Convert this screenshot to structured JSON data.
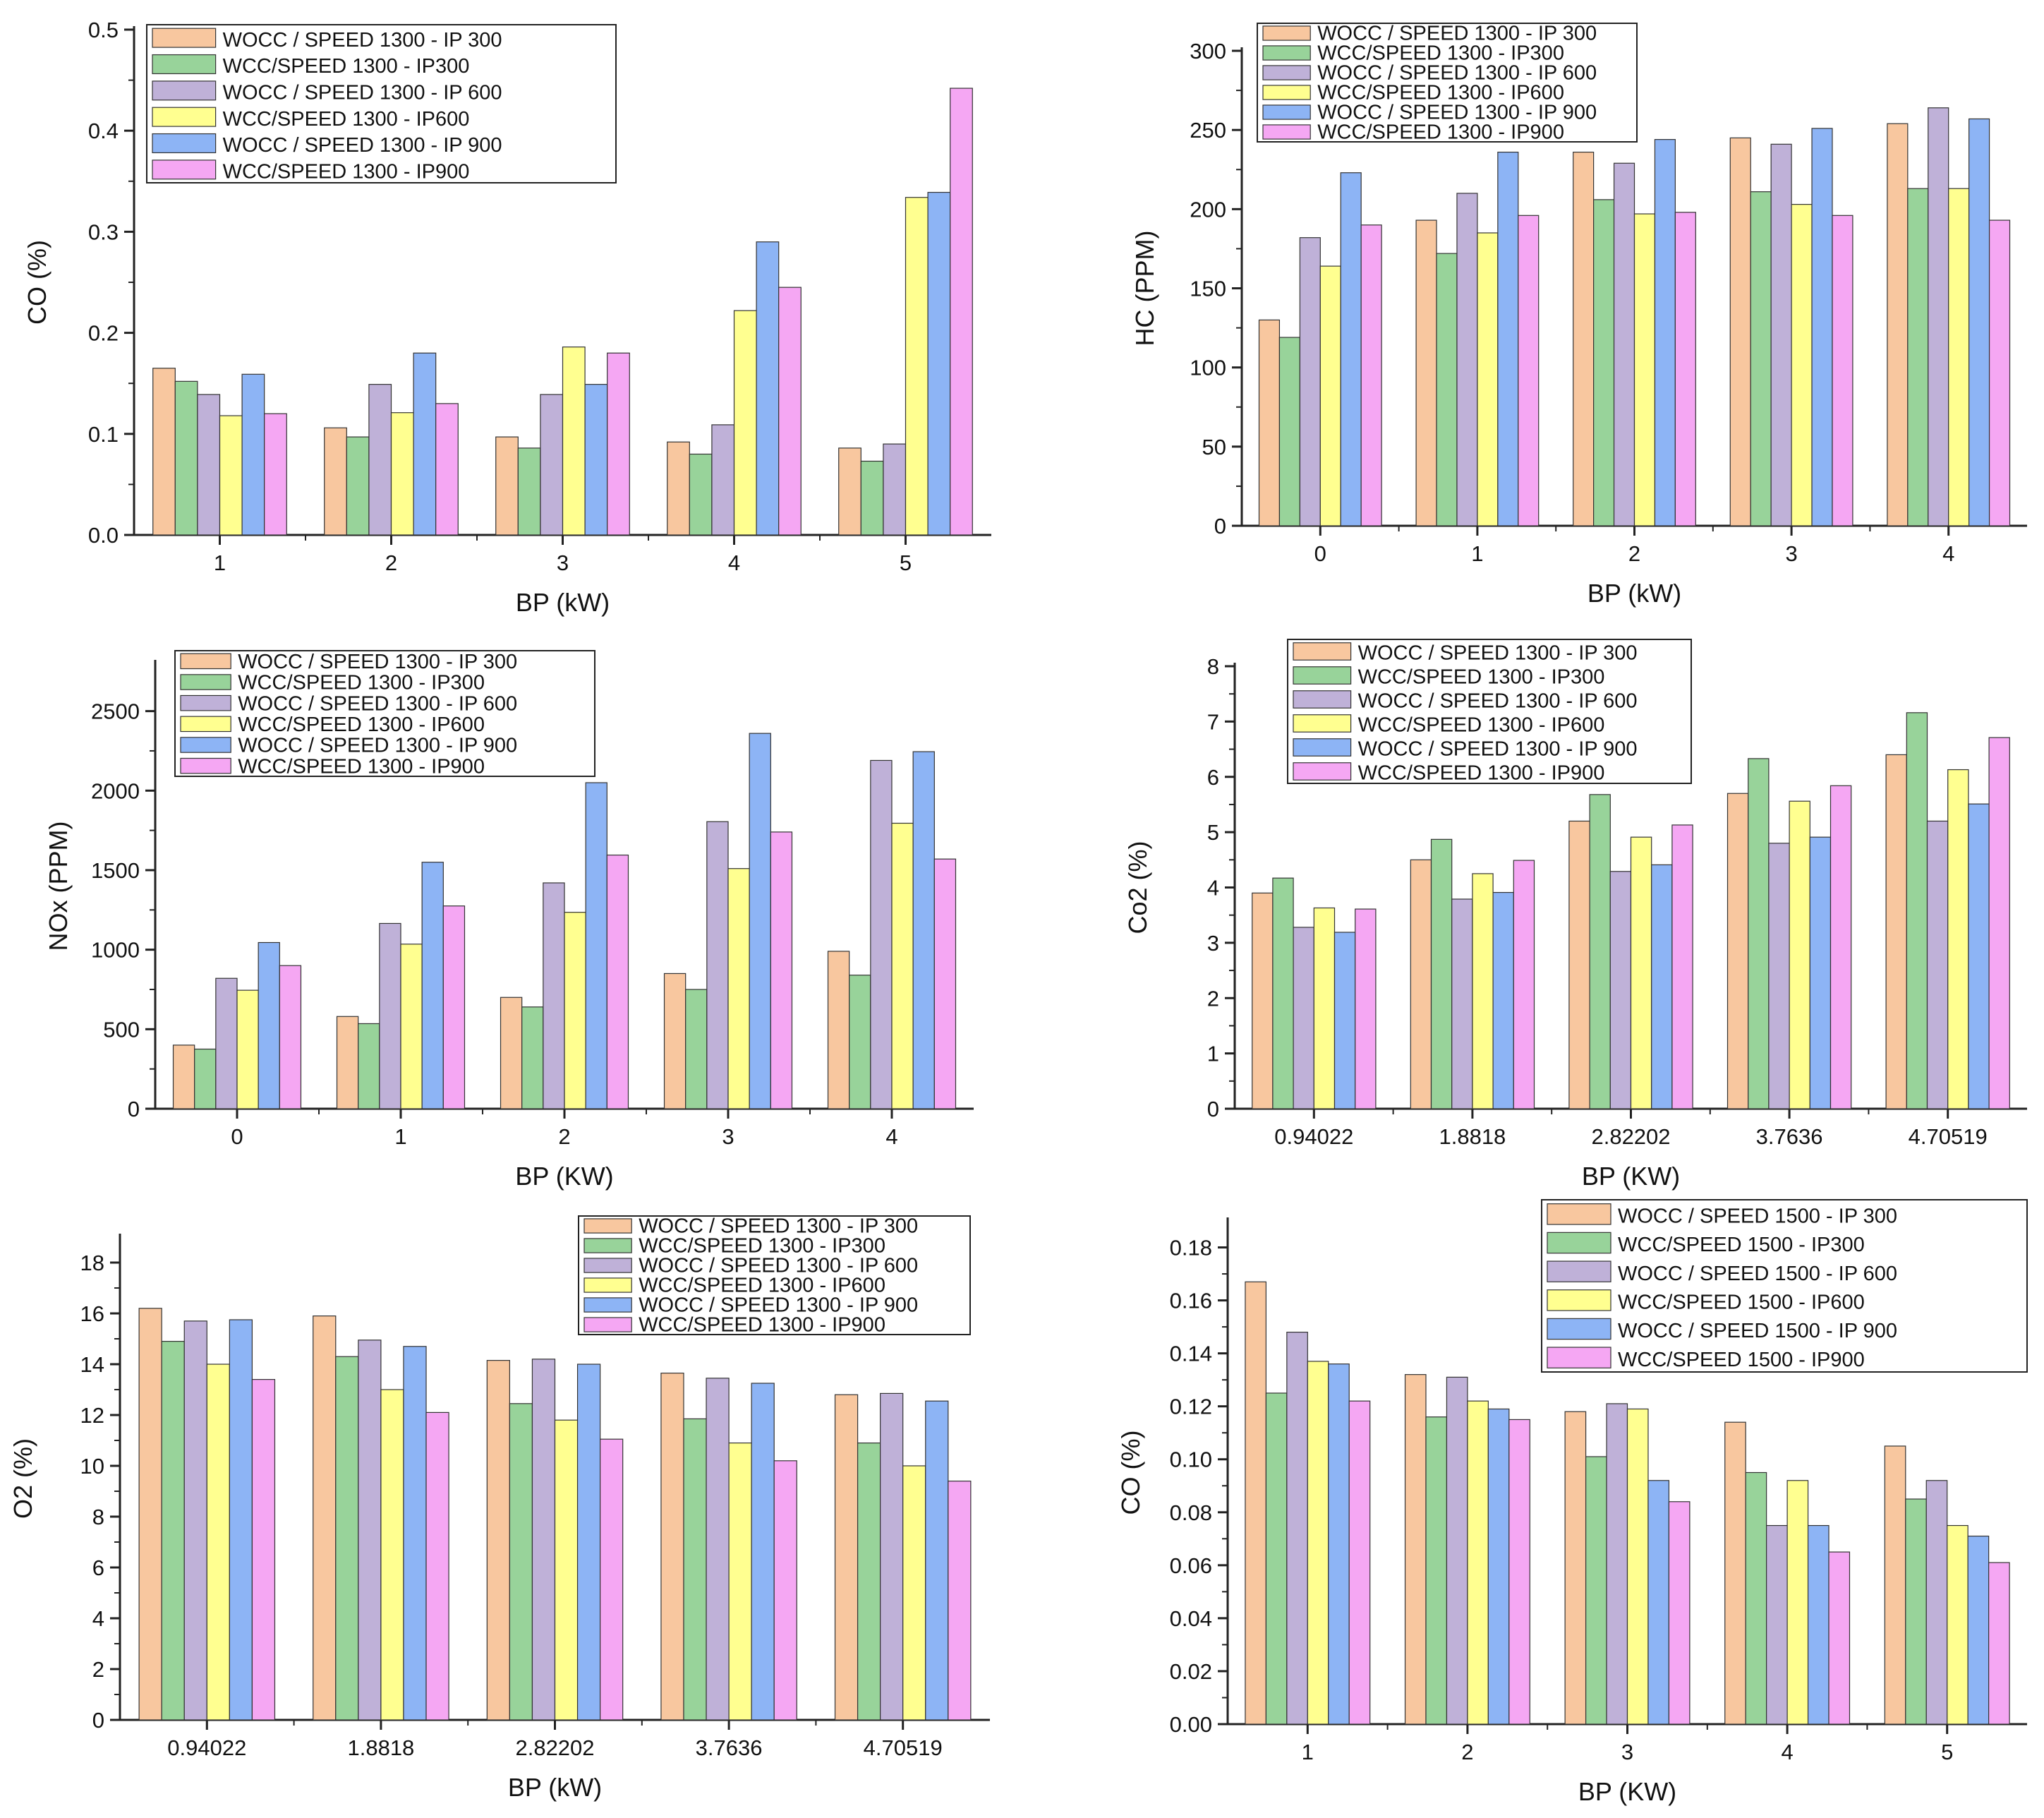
{
  "colors": {
    "orange": "#f8c79f",
    "green": "#98d39a",
    "purple": "#bfb1d8",
    "yellow": "#ffff90",
    "blue": "#8db4f5",
    "pink": "#f5a7f3",
    "stroke": "#333333",
    "axis": "#222222"
  },
  "chart_data": [
    {
      "type": "bar",
      "xlabel": "BP (kW)",
      "ylabel": "CO (%)",
      "ylim": [
        0,
        0.5
      ],
      "yticks": [
        "0.0",
        "0.1",
        "0.2",
        "0.3",
        "0.4",
        "0.5"
      ],
      "categories": [
        "1",
        "2",
        "3",
        "4",
        "5"
      ],
      "legend_position": "top-left",
      "series": [
        {
          "name": "WOCC / SPEED 1300 - IP 300",
          "values": [
            0.165,
            0.106,
            0.097,
            0.092,
            0.086
          ]
        },
        {
          "name": "WCC/SPEED 1300 - IP300",
          "values": [
            0.152,
            0.097,
            0.086,
            0.08,
            0.073
          ]
        },
        {
          "name": "WOCC / SPEED 1300 - IP 600",
          "values": [
            0.139,
            0.149,
            0.139,
            0.109,
            0.09
          ]
        },
        {
          "name": "WCC/SPEED 1300 - IP600",
          "values": [
            0.118,
            0.121,
            0.186,
            0.222,
            0.334
          ]
        },
        {
          "name": "WOCC / SPEED 1300 - IP 900",
          "values": [
            0.159,
            0.18,
            0.149,
            0.29,
            0.339
          ]
        },
        {
          "name": "WCC/SPEED 1300 - IP900",
          "values": [
            0.12,
            0.13,
            0.18,
            0.245,
            0.442
          ]
        }
      ]
    },
    {
      "type": "bar",
      "xlabel": "BP (kW)",
      "ylabel": "HC (PPM)",
      "ylim": [
        0,
        300
      ],
      "yticks": [
        "0",
        "50",
        "100",
        "150",
        "200",
        "250",
        "300"
      ],
      "categories": [
        "0",
        "1",
        "2",
        "3",
        "4"
      ],
      "legend_position": "top-left",
      "series": [
        {
          "name": "WOCC / SPEED 1300 - IP 300",
          "values": [
            130,
            193,
            236,
            245,
            254
          ]
        },
        {
          "name": "WCC/SPEED 1300 - IP300",
          "values": [
            119,
            172,
            206,
            211,
            213
          ]
        },
        {
          "name": "WOCC / SPEED 1300 - IP 600",
          "values": [
            182,
            210,
            229,
            241,
            264
          ]
        },
        {
          "name": "WCC/SPEED 1300 - IP600",
          "values": [
            164,
            185,
            197,
            203,
            213
          ]
        },
        {
          "name": "WOCC / SPEED 1300 - IP 900",
          "values": [
            223,
            236,
            244,
            251,
            257
          ]
        },
        {
          "name": "WCC/SPEED 1300 - IP900",
          "values": [
            190,
            196,
            198,
            196,
            193
          ]
        }
      ]
    },
    {
      "type": "bar",
      "xlabel": "BP (KW)",
      "ylabel": "NOx (PPM)",
      "ylim": [
        0,
        2800
      ],
      "yticks": [
        "0",
        "500",
        "1000",
        "1500",
        "2000",
        "2500"
      ],
      "categories": [
        "0",
        "1",
        "2",
        "3",
        "4"
      ],
      "legend_position": "top-left",
      "series": [
        {
          "name": "WOCC / SPEED 1300 - IP 300",
          "values": [
            400,
            580,
            700,
            850,
            990
          ]
        },
        {
          "name": "WCC/SPEED 1300 - IP300",
          "values": [
            375,
            535,
            640,
            750,
            840
          ]
        },
        {
          "name": "WOCC / SPEED 1300 - IP 600",
          "values": [
            820,
            1165,
            1420,
            1805,
            2190
          ]
        },
        {
          "name": "WCC/SPEED 1300 - IP600",
          "values": [
            745,
            1035,
            1235,
            1510,
            1795
          ]
        },
        {
          "name": "WOCC / SPEED 1300 - IP 900",
          "values": [
            1045,
            1550,
            2050,
            2360,
            2245
          ]
        },
        {
          "name": "WCC/SPEED 1300 - IP900",
          "values": [
            900,
            1275,
            1595,
            1740,
            1570
          ]
        }
      ]
    },
    {
      "type": "bar",
      "xlabel": "BP (KW)",
      "ylabel": "Co2 (%)",
      "ylim": [
        0,
        8
      ],
      "yticks": [
        "0",
        "1",
        "2",
        "3",
        "4",
        "5",
        "6",
        "7",
        "8"
      ],
      "categories": [
        "0.94022",
        "1.8818",
        "2.82202",
        "3.7636",
        "4.70519"
      ],
      "legend_position": "top-left",
      "series": [
        {
          "name": "WOCC / SPEED 1300 - IP 300",
          "values": [
            3.9,
            4.5,
            5.2,
            5.7,
            6.4
          ]
        },
        {
          "name": "WCC/SPEED 1300 - IP300",
          "values": [
            4.17,
            4.87,
            5.68,
            6.33,
            7.16
          ]
        },
        {
          "name": "WOCC / SPEED 1300 - IP 600",
          "values": [
            3.28,
            3.79,
            4.29,
            4.8,
            5.2
          ]
        },
        {
          "name": "WCC/SPEED 1300 - IP600",
          "values": [
            3.63,
            4.25,
            4.91,
            5.56,
            6.13
          ]
        },
        {
          "name": "WOCC / SPEED 1300 - IP 900",
          "values": [
            3.19,
            3.91,
            4.41,
            4.91,
            5.51
          ]
        },
        {
          "name": "WCC/SPEED 1300 - IP900",
          "values": [
            3.61,
            4.49,
            5.13,
            5.84,
            6.71
          ]
        }
      ]
    },
    {
      "type": "bar",
      "xlabel": "BP (kW)",
      "ylabel": "O2 (%)",
      "ylim": [
        0,
        19
      ],
      "yticks": [
        "0",
        "2",
        "4",
        "6",
        "8",
        "10",
        "12",
        "14",
        "16",
        "18"
      ],
      "categories": [
        "0.94022",
        "1.8818",
        "2.82202",
        "3.7636",
        "4.70519"
      ],
      "legend_position": "top-right",
      "series": [
        {
          "name": "WOCC / SPEED 1300 - IP 300",
          "values": [
            16.2,
            15.9,
            14.15,
            13.65,
            12.8
          ]
        },
        {
          "name": "WCC/SPEED 1300 - IP300",
          "values": [
            14.9,
            14.3,
            12.45,
            11.85,
            10.9
          ]
        },
        {
          "name": "WOCC / SPEED 1300 - IP 600",
          "values": [
            15.7,
            14.95,
            14.2,
            13.45,
            12.85
          ]
        },
        {
          "name": "WCC/SPEED 1300 - IP600",
          "values": [
            14.0,
            13.0,
            11.8,
            10.9,
            10.0
          ]
        },
        {
          "name": "WOCC / SPEED 1300 - IP 900",
          "values": [
            15.75,
            14.7,
            14.0,
            13.25,
            12.55
          ]
        },
        {
          "name": "WCC/SPEED 1300 - IP900",
          "values": [
            13.4,
            12.1,
            11.05,
            10.2,
            9.4
          ]
        }
      ]
    },
    {
      "type": "bar",
      "xlabel": "BP (KW)",
      "ylabel": "CO (%)",
      "ylim": [
        0,
        0.19
      ],
      "yticks": [
        "0.00",
        "0.02",
        "0.04",
        "0.06",
        "0.08",
        "0.10",
        "0.12",
        "0.14",
        "0.16",
        "0.18"
      ],
      "categories": [
        "1",
        "2",
        "3",
        "4",
        "5"
      ],
      "legend_position": "top-right",
      "series": [
        {
          "name": "WOCC / SPEED 1500 - IP 300",
          "values": [
            0.167,
            0.132,
            0.118,
            0.114,
            0.105
          ]
        },
        {
          "name": "WCC/SPEED 1500 - IP300",
          "values": [
            0.125,
            0.116,
            0.101,
            0.095,
            0.085
          ]
        },
        {
          "name": "WOCC / SPEED 1500 - IP 600",
          "values": [
            0.148,
            0.131,
            0.121,
            0.075,
            0.092
          ]
        },
        {
          "name": "WCC/SPEED 1500 - IP600",
          "values": [
            0.137,
            0.122,
            0.119,
            0.092,
            0.075
          ]
        },
        {
          "name": "WOCC / SPEED 1500 - IP 900",
          "values": [
            0.136,
            0.119,
            0.092,
            0.075,
            0.071
          ]
        },
        {
          "name": "WCC/SPEED 1500 - IP900",
          "values": [
            0.122,
            0.115,
            0.084,
            0.065,
            0.061
          ]
        }
      ]
    }
  ]
}
